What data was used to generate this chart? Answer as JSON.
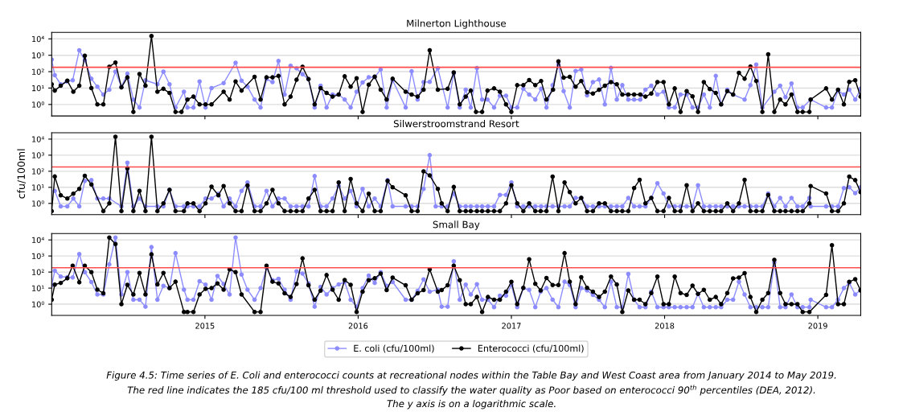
{
  "chart_data": [
    {
      "type": "line",
      "title": "Milnerton Lighthouse",
      "log": "y",
      "grid": "y",
      "marker": "circle",
      "line_style": "solid",
      "tick_labels": "y",
      "xlim": [
        2014.0,
        2019.28
      ],
      "xticks": [
        2015,
        2016,
        2017,
        2018,
        2019
      ],
      "ylim": [
        0.2,
        25000
      ],
      "yticks": [
        {
          "value": 1,
          "label": "10⁰"
        },
        {
          "value": 10,
          "label": "10¹"
        },
        {
          "value": 100,
          "label": "10²"
        },
        {
          "value": 1000,
          "label": "10³"
        },
        {
          "value": 10000,
          "label": "10⁴"
        }
      ],
      "ref_lines": [
        {
          "axis": "y",
          "value": 185,
          "color": "#ff4d4d"
        }
      ],
      "series": [
        {
          "color": "#8c8cff",
          "x": [
            2014.0,
            2014.02,
            2014.059,
            2014.098,
            2014.137,
            2014.18,
            2014.216,
            2014.259,
            2014.298,
            2014.337,
            2014.376,
            2014.416,
            2014.455,
            2014.494,
            2014.533,
            2014.573,
            2014.612,
            2014.69,
            2014.729,
            2014.769,
            2014.808,
            2014.863,
            2014.886,
            2014.925,
            2014.965,
            2015.004,
            2015.043,
            2015.122,
            2015.2,
            2015.239,
            2015.278,
            2015.324,
            2015.363,
            2015.402,
            2015.441,
            2015.48,
            2015.52,
            2015.559,
            2015.598,
            2015.637,
            2015.676,
            2015.716,
            2015.755,
            2015.794,
            2015.833,
            2015.873,
            2015.912,
            2015.951,
            2015.99,
            2016.029,
            2016.069,
            2016.108,
            2016.147,
            2016.186,
            2016.225,
            2016.31,
            2016.349,
            2016.388,
            2016.427,
            2016.467,
            2016.52,
            2016.584,
            2016.624,
            2016.663,
            2016.702,
            2016.735,
            2016.775,
            2016.809,
            2016.844,
            2016.887,
            2016.925,
            2016.965,
            2017.0,
            2017.038,
            2017.078,
            2017.116,
            2017.156,
            2017.194,
            2017.229,
            2017.269,
            2017.307,
            2017.341,
            2017.381,
            2017.419,
            2017.456,
            2017.494,
            2017.532,
            2017.572,
            2017.61,
            2017.65,
            2017.688,
            2017.724,
            2017.763,
            2017.801,
            2017.841,
            2017.875,
            2017.913,
            2017.953,
            2017.993,
            2018.028,
            2018.066,
            2018.104,
            2018.144,
            2018.182,
            2018.218,
            2018.256,
            2018.295,
            2018.334,
            2018.369,
            2018.409,
            2018.447,
            2018.522,
            2018.56,
            2018.598,
            2018.638,
            2018.716,
            2018.754,
            2018.789,
            2018.828,
            2018.867,
            2018.901,
            2018.953,
            2019.054,
            2019.092,
            2019.132,
            2019.17,
            2019.205,
            2019.244,
            2019.279
          ],
          "values": [
            550,
            60,
            17,
            25,
            30,
            2000,
            500,
            37,
            12,
            4,
            8,
            100,
            12,
            75,
            2,
            0.65,
            30,
            17,
            100,
            17,
            0.65,
            6,
            0.65,
            0.65,
            25,
            0.65,
            10,
            20,
            350,
            28,
            12,
            2,
            0.65,
            35,
            23,
            450,
            4,
            230,
            160,
            70,
            35,
            0.65,
            14,
            0.65,
            4,
            4,
            2,
            0.65,
            6,
            22,
            46,
            46,
            135,
            0.65,
            30,
            0.65,
            105,
            2,
            23,
            24,
            160,
            0.65,
            80,
            0.65,
            8,
            0.65,
            165,
            2,
            2,
            0.65,
            3.4,
            3.4,
            0.65,
            0.65,
            9,
            4,
            2,
            9,
            0.65,
            15,
            270,
            6.5,
            0.65,
            110,
            135,
            3.6,
            23,
            33,
            1,
            170,
            2,
            15,
            2,
            2,
            2,
            8,
            14,
            4,
            6,
            0.65,
            0.65,
            4,
            4,
            0.65,
            0.65,
            4,
            0.65,
            55,
            1,
            8,
            4,
            2,
            15,
            270,
            0.65,
            6,
            14,
            2.8,
            19,
            0.65,
            0.65,
            2,
            0.65,
            0.65,
            7,
            4,
            8,
            2,
            9
          ]
        },
        {
          "color": "#000000",
          "x": [
            2014.0,
            2014.02,
            2014.059,
            2014.102,
            2014.141,
            2014.18,
            2014.216,
            2014.259,
            2014.298,
            2014.337,
            2014.376,
            2014.416,
            2014.455,
            2014.494,
            2014.533,
            2014.573,
            2014.612,
            2014.651,
            2014.69,
            2014.729,
            2014.769,
            2014.808,
            2014.847,
            2014.886,
            2014.925,
            2014.965,
            2015.004,
            2015.043,
            2015.122,
            2015.161,
            2015.2,
            2015.239,
            2015.324,
            2015.363,
            2015.402,
            2015.441,
            2015.48,
            2015.52,
            2015.559,
            2015.598,
            2015.637,
            2015.676,
            2015.716,
            2015.755,
            2015.794,
            2015.833,
            2015.873,
            2015.912,
            2015.951,
            2015.99,
            2016.029,
            2016.069,
            2016.108,
            2016.147,
            2016.186,
            2016.225,
            2016.31,
            2016.349,
            2016.388,
            2016.427,
            2016.467,
            2016.52,
            2016.584,
            2016.624,
            2016.663,
            2016.702,
            2016.735,
            2016.769,
            2016.809,
            2016.844,
            2016.887,
            2016.925,
            2016.965,
            2017.0,
            2017.038,
            2017.078,
            2017.116,
            2017.156,
            2017.194,
            2017.229,
            2017.272,
            2017.307,
            2017.341,
            2017.381,
            2017.419,
            2017.456,
            2017.494,
            2017.532,
            2017.572,
            2017.61,
            2017.65,
            2017.688,
            2017.724,
            2017.763,
            2017.801,
            2017.841,
            2017.875,
            2017.913,
            2017.953,
            2017.993,
            2018.028,
            2018.066,
            2018.104,
            2018.144,
            2018.182,
            2018.218,
            2018.256,
            2018.295,
            2018.334,
            2018.369,
            2018.409,
            2018.447,
            2018.485,
            2018.522,
            2018.56,
            2018.598,
            2018.638,
            2018.676,
            2018.716,
            2018.754,
            2018.789,
            2018.828,
            2018.867,
            2018.901,
            2018.945,
            2018.953,
            2019.054,
            2019.092,
            2019.132,
            2019.17,
            2019.205,
            2019.244,
            2019.279
          ],
          "values": [
            17,
            7,
            14,
            28,
            6,
            14,
            930,
            10,
            1,
            1,
            200,
            360,
            11,
            45,
            0.35,
            72,
            14,
            15000,
            6,
            9,
            5,
            0.35,
            0.35,
            2,
            3,
            1,
            1,
            1,
            6,
            2,
            25,
            7,
            48,
            2,
            45,
            45,
            55,
            1,
            3,
            32,
            200,
            35,
            1,
            10,
            5,
            3,
            4,
            52,
            12,
            40,
            0.35,
            16,
            50,
            8,
            2,
            37,
            6,
            4,
            3,
            8,
            2000,
            8,
            9,
            90,
            1,
            3,
            7,
            0.35,
            0.35,
            7,
            9.5,
            6,
            1,
            0.35,
            15,
            15,
            31,
            15,
            27,
            2,
            8,
            425,
            43,
            48,
            12,
            27,
            5.5,
            4.6,
            7.8,
            14,
            23,
            17,
            4,
            4,
            4,
            4,
            3,
            4.6,
            23,
            23,
            1,
            9.5,
            0.35,
            6.5,
            3.1,
            0.35,
            23,
            8.7,
            5,
            1,
            6.5,
            4,
            85,
            37,
            205,
            27,
            0.35,
            1140,
            0.35,
            2,
            1,
            4,
            0.35,
            0.35,
            0.35,
            2,
            9.5,
            2,
            8,
            1,
            24,
            30,
            3
          ]
        }
      ]
    },
    {
      "type": "line",
      "title": "Silwerstroomstrand Resort",
      "ylabel": "cfu/100ml",
      "log": "y",
      "grid": "y",
      "marker": "circle",
      "line_style": "solid",
      "tick_labels": "y",
      "xlim": [
        2014.0,
        2019.28
      ],
      "xticks": [
        2015,
        2016,
        2017,
        2018,
        2019
      ],
      "ylim": [
        0.2,
        25000
      ],
      "yticks": [
        {
          "value": 1,
          "label": "10⁰"
        },
        {
          "value": 10,
          "label": "10¹"
        },
        {
          "value": 100,
          "label": "10²"
        },
        {
          "value": 1000,
          "label": "10³"
        },
        {
          "value": 10000,
          "label": "10⁴"
        }
      ],
      "ref_lines": [
        {
          "axis": "y",
          "value": 185,
          "color": "#ff4d4d"
        }
      ],
      "series": [
        {
          "color": "#8c8cff",
          "x": [
            2014.02,
            2014.059,
            2014.102,
            2014.141,
            2014.18,
            2014.216,
            2014.259,
            2014.298,
            2014.337,
            2014.376,
            2014.455,
            2014.494,
            2014.533,
            2014.573,
            2014.612,
            2014.69,
            2014.729,
            2014.769,
            2014.808,
            2014.863,
            2014.886,
            2014.925,
            2014.965,
            2015.004,
            2015.043,
            2015.088,
            2015.122,
            2015.161,
            2015.2,
            2015.239,
            2015.278,
            2015.324,
            2015.363,
            2015.402,
            2015.441,
            2015.48,
            2015.52,
            2015.559,
            2015.598,
            2015.637,
            2015.676,
            2015.716,
            2015.755,
            2015.794,
            2015.833,
            2015.873,
            2015.912,
            2015.951,
            2015.99,
            2016.029,
            2016.069,
            2016.108,
            2016.147,
            2016.192,
            2016.225,
            2016.31,
            2016.349,
            2016.388,
            2016.427,
            2016.467,
            2016.506,
            2016.545,
            2016.584,
            2016.624,
            2016.663,
            2016.702,
            2016.735,
            2016.775,
            2016.809,
            2016.847,
            2016.887,
            2016.925,
            2016.965,
            2017.0,
            2017.038,
            2017.078,
            2017.116,
            2017.156,
            2017.194,
            2017.229,
            2017.269,
            2017.307,
            2017.347,
            2017.381,
            2017.419,
            2017.456,
            2017.494,
            2017.532,
            2017.572,
            2017.61,
            2017.65,
            2017.688,
            2017.724,
            2017.763,
            2017.801,
            2017.837,
            2017.875,
            2017.913,
            2017.953,
            2017.993,
            2018.028,
            2018.066,
            2018.104,
            2018.144,
            2018.182,
            2018.218,
            2018.256,
            2018.295,
            2018.334,
            2018.369,
            2018.409,
            2018.447,
            2018.485,
            2018.522,
            2018.56,
            2018.598,
            2018.638,
            2018.676,
            2018.716,
            2018.754,
            2018.789,
            2018.828,
            2018.867,
            2018.901,
            2018.945,
            2018.953,
            2019.054,
            2019.092,
            2019.132,
            2019.17,
            2019.205,
            2019.244,
            2019.279
          ],
          "values": [
            6,
            0.65,
            0.65,
            2,
            0.65,
            25,
            28,
            2,
            2,
            2,
            0.65,
            340,
            0.65,
            2,
            0.65,
            0.65,
            0.65,
            7,
            0.65,
            0.65,
            0.65,
            0.65,
            0.65,
            2,
            2,
            4,
            0.65,
            2,
            0.65,
            6,
            20,
            0.65,
            0.65,
            6,
            0.65,
            2,
            2,
            0.65,
            0.65,
            0.65,
            0.65,
            50,
            0.65,
            0.65,
            2,
            12,
            2,
            6,
            0.65,
            8,
            0.65,
            2,
            0.65,
            28,
            0.65,
            0.65,
            0.65,
            0.65,
            8,
            1000,
            0.65,
            0.65,
            0.65,
            4,
            0.65,
            0.65,
            0.65,
            0.65,
            0.65,
            0.65,
            0.65,
            3.4,
            3.4,
            20,
            0.65,
            0.65,
            0.65,
            0.65,
            0.65,
            0.65,
            0.65,
            0.65,
            0.65,
            0.65,
            2.2,
            2.2,
            0.65,
            0.65,
            0.65,
            0.65,
            0.65,
            0.65,
            0.65,
            2.2,
            0.65,
            0.65,
            0.65,
            2.2,
            18,
            4.1,
            0.65,
            0.65,
            0.65,
            0.65,
            0.65,
            13.5,
            0.65,
            0.65,
            0.65,
            0.65,
            0.65,
            0.65,
            0.65,
            0.65,
            0.65,
            0.65,
            0.65,
            4.1,
            0.65,
            2.2,
            0.65,
            2.2,
            0.65,
            0.65,
            2.2,
            0.65,
            0.65,
            0.65,
            0.65,
            9,
            10,
            4.3,
            10
          ]
        },
        {
          "color": "#000000",
          "x": [
            2014.0,
            2014.02,
            2014.059,
            2014.102,
            2014.141,
            2014.18,
            2014.216,
            2014.259,
            2014.337,
            2014.376,
            2014.416,
            2014.455,
            2014.494,
            2014.533,
            2014.573,
            2014.612,
            2014.651,
            2014.69,
            2014.729,
            2014.769,
            2014.808,
            2014.863,
            2014.886,
            2014.925,
            2014.965,
            2015.004,
            2015.043,
            2015.088,
            2015.122,
            2015.161,
            2015.2,
            2015.239,
            2015.278,
            2015.324,
            2015.363,
            2015.402,
            2015.441,
            2015.48,
            2015.52,
            2015.559,
            2015.598,
            2015.637,
            2015.676,
            2015.716,
            2015.755,
            2015.794,
            2015.833,
            2015.873,
            2015.912,
            2015.951,
            2015.99,
            2016.029,
            2016.069,
            2016.108,
            2016.147,
            2016.192,
            2016.225,
            2016.31,
            2016.349,
            2016.388,
            2016.427,
            2016.467,
            2016.52,
            2016.545,
            2016.584,
            2016.624,
            2016.663,
            2016.702,
            2016.735,
            2016.775,
            2016.809,
            2016.847,
            2016.887,
            2016.925,
            2016.965,
            2017.0,
            2017.038,
            2017.078,
            2017.116,
            2017.156,
            2017.191,
            2017.229,
            2017.269,
            2017.307,
            2017.347,
            2017.381,
            2017.419,
            2017.456,
            2017.494,
            2017.532,
            2017.572,
            2017.61,
            2017.65,
            2017.688,
            2017.724,
            2017.763,
            2017.801,
            2017.837,
            2017.875,
            2017.913,
            2017.953,
            2017.993,
            2018.028,
            2018.066,
            2018.104,
            2018.144,
            2018.182,
            2018.218,
            2018.256,
            2018.295,
            2018.334,
            2018.369,
            2018.409,
            2018.447,
            2018.485,
            2018.522,
            2018.56,
            2018.598,
            2018.638,
            2018.676,
            2018.716,
            2018.754,
            2018.789,
            2018.828,
            2018.867,
            2018.901,
            2018.945,
            2018.953,
            2019.054,
            2019.092,
            2019.132,
            2019.17,
            2019.205,
            2019.244,
            2019.279
          ],
          "values": [
            0.33,
            47,
            3.2,
            2,
            4,
            8,
            52,
            15,
            0.33,
            1,
            14000,
            0.33,
            150,
            0.33,
            6,
            0.33,
            14000,
            0.33,
            1,
            7,
            0.33,
            0.33,
            1,
            1,
            0.33,
            1,
            11,
            3.2,
            12,
            1,
            0.33,
            0.33,
            13,
            0.33,
            0.33,
            1,
            7,
            1,
            0.33,
            0.33,
            0.33,
            0.33,
            2,
            7,
            0.33,
            0.33,
            0.33,
            20,
            0.33,
            33,
            1,
            0.33,
            4,
            0.33,
            0.33,
            25,
            10,
            3.2,
            0.33,
            0.33,
            98,
            55,
            8,
            1,
            0.33,
            10.5,
            0.33,
            0.33,
            0.33,
            0.33,
            0.33,
            0.33,
            0.33,
            0.33,
            1,
            13.5,
            1,
            0.33,
            1,
            0.33,
            0.33,
            0.33,
            46,
            0.33,
            20,
            5,
            1,
            2.2,
            0.33,
            0.33,
            1,
            1,
            0.33,
            0.33,
            0.33,
            0.33,
            9,
            29,
            1,
            2.2,
            0.33,
            0.33,
            2.2,
            0.33,
            0.33,
            13.5,
            0.33,
            1,
            0.33,
            0.33,
            0.33,
            0.33,
            1,
            0.33,
            1,
            29,
            0.33,
            0.33,
            0.33,
            3.4,
            0.33,
            0.33,
            0.33,
            0.33,
            0.33,
            0.33,
            1,
            12,
            4.1,
            0.33,
            0.33,
            1,
            46,
            28,
            5
          ]
        }
      ]
    },
    {
      "type": "line",
      "title": "Small Bay",
      "log": "y",
      "grid": "y",
      "marker": "circle",
      "line_style": "solid",
      "legend": "bottom",
      "xlim": [
        2014.0,
        2019.28
      ],
      "xticks": [
        2015,
        2016,
        2017,
        2018,
        2019
      ],
      "ylim": [
        0.2,
        25000
      ],
      "yticks": [
        {
          "value": 1,
          "label": "10⁰"
        },
        {
          "value": 10,
          "label": "10¹"
        },
        {
          "value": 100,
          "label": "10²"
        },
        {
          "value": 1000,
          "label": "10³"
        },
        {
          "value": 10000,
          "label": "10⁴"
        }
      ],
      "ref_lines": [
        {
          "axis": "y",
          "value": 185,
          "color": "#ff4d4d"
        }
      ],
      "annotations": [
        "Figure 4.5: Time series of E. Coli and enterococci counts at recreational nodes within the Table Bay and West Coast area from January 2014 to May 2019.",
        "The red line indicates the 185 cfu/100 ml threshold used to classify the water quality as Poor based on enterococci 90$^{th}$ percentiles (DEA, 2012).",
        "The y axis is on a logarithmic scale."
      ],
      "series": [
        {
          "name": "E. coli (cfu/100ml)",
          "color": "#8c8cff",
          "x": [
            2014.0,
            2014.02,
            2014.059,
            2014.102,
            2014.137,
            2014.18,
            2014.216,
            2014.259,
            2014.298,
            2014.337,
            2014.376,
            2014.416,
            2014.455,
            2014.494,
            2014.533,
            2014.573,
            2014.612,
            2014.651,
            2014.69,
            2014.729,
            2014.769,
            2014.808,
            2014.863,
            2014.886,
            2014.925,
            2014.965,
            2015.004,
            2015.043,
            2015.082,
            2015.122,
            2015.161,
            2015.2,
            2015.239,
            2015.278,
            2015.324,
            2015.363,
            2015.402,
            2015.441,
            2015.48,
            2015.52,
            2015.559,
            2015.598,
            2015.637,
            2015.676,
            2015.716,
            2015.755,
            2015.794,
            2015.833,
            2015.873,
            2015.912,
            2015.951,
            2015.99,
            2016.029,
            2016.069,
            2016.108,
            2016.147,
            2016.186,
            2016.225,
            2016.31,
            2016.349,
            2016.388,
            2016.427,
            2016.467,
            2016.52,
            2016.545,
            2016.584,
            2016.624,
            2016.663,
            2016.702,
            2016.735,
            2016.775,
            2016.809,
            2016.847,
            2016.887,
            2016.925,
            2016.965,
            2017.0,
            2017.038,
            2017.078,
            2017.116,
            2017.156,
            2017.191,
            2017.229,
            2017.269,
            2017.307,
            2017.347,
            2017.381,
            2017.419,
            2017.456,
            2017.494,
            2017.532,
            2017.572,
            2017.61,
            2017.65,
            2017.688,
            2017.724,
            2017.763,
            2017.801,
            2017.837,
            2017.875,
            2017.913,
            2017.953,
            2017.993,
            2018.028,
            2018.066,
            2018.104,
            2018.144,
            2018.182,
            2018.218,
            2018.256,
            2018.295,
            2018.334,
            2018.369,
            2018.409,
            2018.447,
            2018.485,
            2018.522,
            2018.56,
            2018.598,
            2018.638,
            2018.676,
            2018.716,
            2018.754,
            2018.789,
            2018.828,
            2018.867,
            2018.901,
            2018.945,
            2018.953,
            2019.054,
            2019.092,
            2019.132,
            2019.17,
            2019.205,
            2019.244,
            2019.279
          ],
          "values": [
            15,
            120,
            52,
            48,
            46,
            1320,
            98,
            24,
            4,
            4,
            300,
            14000,
            4,
            98,
            1.9,
            1.9,
            0.7,
            3560,
            1.9,
            14,
            10,
            1500,
            8,
            1.9,
            1.9,
            27,
            16.5,
            1.9,
            57,
            18,
            4,
            14000,
            70,
            8,
            1.9,
            10,
            180,
            31,
            38,
            8,
            1.9,
            110,
            80,
            19.5,
            0.7,
            12,
            4,
            10,
            17,
            24,
            1.9,
            0.7,
            10,
            60,
            21,
            98,
            14,
            24,
            1.9,
            1.9,
            6.7,
            35,
            6,
            8,
            0.7,
            0.7,
            470,
            1.9,
            16.5,
            4,
            17.4,
            1.9,
            1.9,
            0.65,
            3.4,
            3.4,
            15.5,
            0.65,
            10,
            7.8,
            0.65,
            6,
            10,
            1.9,
            0.65,
            25,
            15.5,
            0.65,
            10,
            7.2,
            3.8,
            1.9,
            0.65,
            25,
            0.65,
            0.65,
            76,
            1.9,
            0.65,
            0.65,
            6,
            0.65,
            0.65,
            0.65,
            0.65,
            0.65,
            0.65,
            0.65,
            4.4,
            0.65,
            0.65,
            0.65,
            0.65,
            1.9,
            1.9,
            25,
            4,
            0.65,
            0.65,
            0.65,
            0.65,
            400,
            0.65,
            0.65,
            4,
            0.65,
            0.65,
            0.65,
            1.9,
            0.65,
            0.65,
            1.9,
            10,
            21,
            4,
            7.8
          ]
        },
        {
          "name": "Enterococci (cfu/100ml)",
          "color": "#000000",
          "x": [
            2014.0,
            2014.02,
            2014.059,
            2014.102,
            2014.137,
            2014.18,
            2014.216,
            2014.259,
            2014.298,
            2014.337,
            2014.376,
            2014.416,
            2014.455,
            2014.494,
            2014.533,
            2014.573,
            2014.612,
            2014.651,
            2014.69,
            2014.729,
            2014.769,
            2014.808,
            2014.863,
            2014.886,
            2014.925,
            2014.965,
            2015.004,
            2015.043,
            2015.082,
            2015.122,
            2015.161,
            2015.2,
            2015.239,
            2015.324,
            2015.363,
            2015.402,
            2015.441,
            2015.48,
            2015.52,
            2015.559,
            2015.598,
            2015.637,
            2015.676,
            2015.716,
            2015.755,
            2015.794,
            2015.833,
            2015.873,
            2015.912,
            2015.951,
            2015.99,
            2016.029,
            2016.069,
            2016.108,
            2016.147,
            2016.186,
            2016.225,
            2016.31,
            2016.349,
            2016.388,
            2016.427,
            2016.467,
            2016.52,
            2016.545,
            2016.584,
            2016.624,
            2016.663,
            2016.702,
            2016.735,
            2016.775,
            2016.809,
            2016.847,
            2016.887,
            2016.925,
            2016.965,
            2017.0,
            2017.038,
            2017.078,
            2017.116,
            2017.156,
            2017.191,
            2017.229,
            2017.269,
            2017.307,
            2017.347,
            2017.381,
            2017.419,
            2017.456,
            2017.494,
            2017.532,
            2017.572,
            2017.61,
            2017.65,
            2017.688,
            2017.724,
            2017.763,
            2017.801,
            2017.837,
            2017.875,
            2017.913,
            2017.953,
            2017.993,
            2018.028,
            2018.066,
            2018.104,
            2018.144,
            2018.182,
            2018.218,
            2018.256,
            2018.295,
            2018.334,
            2018.369,
            2018.409,
            2018.447,
            2018.485,
            2018.522,
            2018.56,
            2018.598,
            2018.638,
            2018.676,
            2018.716,
            2018.754,
            2018.789,
            2018.828,
            2018.867,
            2018.901,
            2018.945,
            2019.054,
            2019.092,
            2019.132,
            2019.17,
            2019.205,
            2019.244,
            2019.279
          ],
          "values": [
            1.9,
            16.5,
            21,
            41,
            250,
            23,
            250,
            98,
            8,
            4.8,
            14000,
            5600,
            1,
            16,
            4,
            87,
            4,
            1260,
            17,
            87,
            10,
            25,
            0.33,
            0.33,
            0.33,
            4,
            9,
            10,
            19.5,
            8,
            148,
            98,
            4,
            0.33,
            0.33,
            250,
            25,
            19.5,
            4.8,
            2.8,
            18,
            710,
            15,
            1.9,
            7,
            65,
            8,
            1.9,
            32,
            16,
            0.33,
            6,
            31,
            41,
            80,
            7.5,
            45,
            15,
            1.9,
            4.8,
            7.5,
            148,
            6,
            7.5,
            15,
            250,
            31,
            1,
            1,
            2.8,
            0.33,
            2.8,
            1.9,
            1.9,
            6,
            24.5,
            1,
            10.5,
            620,
            18.7,
            7.2,
            43,
            15.5,
            15.5,
            1500,
            25,
            1,
            48,
            10.5,
            6,
            2.8,
            6,
            52,
            16.7,
            0.33,
            7.2,
            1.9,
            1.9,
            1,
            4.9,
            52,
            1,
            1,
            52,
            4.9,
            3.8,
            14.3,
            4.4,
            7.8,
            1.9,
            2.8,
            1,
            4.9,
            40,
            45,
            85,
            2.8,
            0.33,
            1.9,
            4.9,
            575,
            4.9,
            1,
            1,
            1,
            0.33,
            0.33,
            3.8,
            4700,
            1,
            1,
            24.5,
            36,
            7.2
          ]
        }
      ]
    }
  ]
}
